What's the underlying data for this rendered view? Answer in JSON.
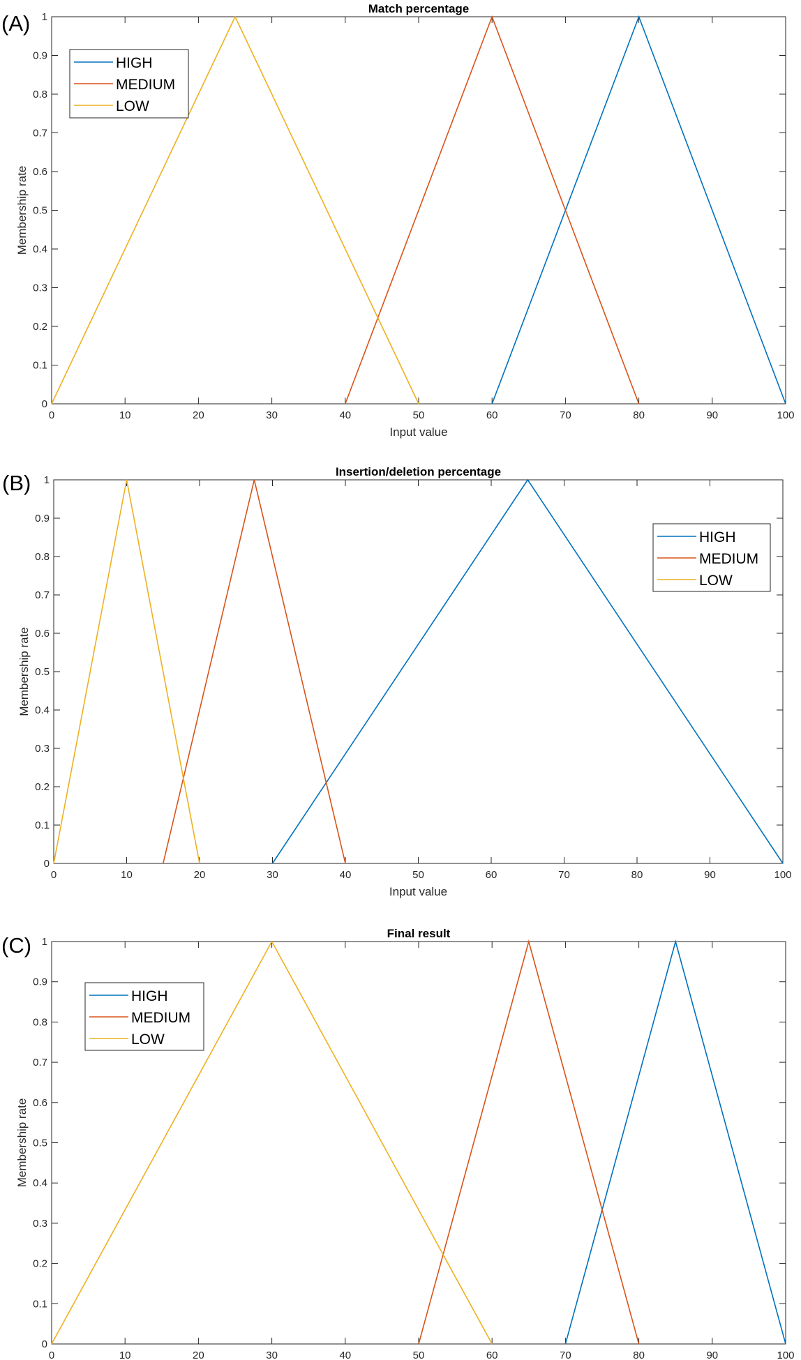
{
  "chart_data": [
    {
      "panel": "(A)",
      "type": "line",
      "title": "Match percentage",
      "xlabel": "Input value",
      "ylabel": "Membership rate",
      "xlim": [
        0,
        100
      ],
      "ylim": [
        0,
        1
      ],
      "xticks": [
        0,
        10,
        20,
        30,
        40,
        50,
        60,
        70,
        80,
        90,
        100
      ],
      "yticks": [
        0,
        0.1,
        0.2,
        0.3,
        0.4,
        0.5,
        0.6,
        0.7,
        0.8,
        0.9,
        1
      ],
      "legend_position": "top-left",
      "series": [
        {
          "name": "HIGH",
          "color": "#0072BD",
          "x": [
            60,
            80,
            100
          ],
          "y": [
            0,
            1,
            0
          ]
        },
        {
          "name": "MEDIUM",
          "color": "#D95319",
          "x": [
            40,
            60,
            80
          ],
          "y": [
            0,
            1,
            0
          ]
        },
        {
          "name": "LOW",
          "color": "#EDB120",
          "x": [
            0,
            25,
            50
          ],
          "y": [
            0,
            1,
            0
          ]
        }
      ]
    },
    {
      "panel": "(B)",
      "type": "line",
      "title": "Insertion/deletion percentage",
      "xlabel": "Input value",
      "ylabel": "Membership rate",
      "xlim": [
        0,
        100
      ],
      "ylim": [
        0,
        1
      ],
      "xticks": [
        0,
        10,
        20,
        30,
        40,
        50,
        60,
        70,
        80,
        90,
        100
      ],
      "yticks": [
        0,
        0.1,
        0.2,
        0.3,
        0.4,
        0.5,
        0.6,
        0.7,
        0.8,
        0.9,
        1
      ],
      "legend_position": "top-right",
      "series": [
        {
          "name": "HIGH",
          "color": "#0072BD",
          "x": [
            30,
            65,
            100
          ],
          "y": [
            0,
            1,
            0
          ]
        },
        {
          "name": "MEDIUM",
          "color": "#D95319",
          "x": [
            15,
            27.5,
            40
          ],
          "y": [
            0,
            1,
            0
          ]
        },
        {
          "name": "LOW",
          "color": "#EDB120",
          "x": [
            0,
            10,
            20
          ],
          "y": [
            0,
            1,
            0
          ]
        }
      ]
    },
    {
      "panel": "(C)",
      "type": "line",
      "title": "Final result",
      "xlabel": "Input value",
      "ylabel": "Membership rate",
      "xlim": [
        0,
        100
      ],
      "ylim": [
        0,
        1
      ],
      "xticks": [
        0,
        10,
        20,
        30,
        40,
        50,
        60,
        70,
        80,
        90,
        100
      ],
      "yticks": [
        0,
        0.1,
        0.2,
        0.3,
        0.4,
        0.5,
        0.6,
        0.7,
        0.8,
        0.9,
        1
      ],
      "legend_position": "top-left",
      "series": [
        {
          "name": "HIGH",
          "color": "#0072BD",
          "x": [
            70,
            85,
            100
          ],
          "y": [
            0,
            1,
            0
          ]
        },
        {
          "name": "MEDIUM",
          "color": "#D95319",
          "x": [
            50,
            65,
            80
          ],
          "y": [
            0,
            1,
            0
          ]
        },
        {
          "name": "LOW",
          "color": "#EDB120",
          "x": [
            0,
            30,
            60
          ],
          "y": [
            0,
            1,
            0
          ]
        }
      ]
    }
  ]
}
